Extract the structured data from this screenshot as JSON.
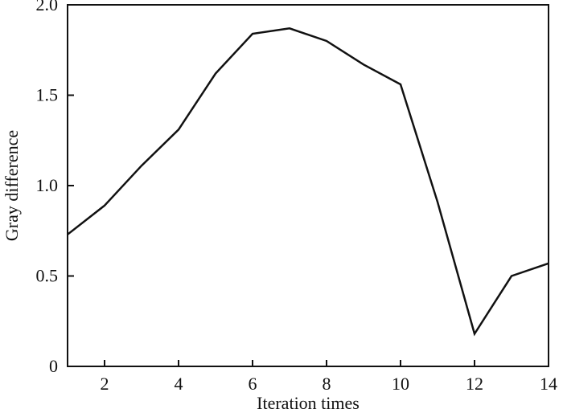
{
  "chart_data": {
    "type": "line",
    "title": "",
    "xlabel": "Iteration times",
    "ylabel": "Gray difference",
    "xlim": [
      1,
      14
    ],
    "ylim": [
      0,
      2.0
    ],
    "x_ticks": [
      2,
      4,
      6,
      8,
      10,
      12,
      14
    ],
    "x_tick_labels": [
      "2",
      "4",
      "6",
      "8",
      "10",
      "12",
      "14"
    ],
    "y_ticks": [
      0,
      0.5,
      1.0,
      1.5,
      2.0
    ],
    "y_tick_labels": [
      "0",
      "0.5",
      "1.0",
      "1.5",
      "2.0"
    ],
    "grid": false,
    "legend": "none",
    "series": [
      {
        "x": [
          1,
          2,
          3,
          4,
          5,
          6,
          7,
          8,
          9,
          10,
          11,
          12,
          13,
          14
        ],
        "values": [
          0.73,
          0.89,
          1.11,
          1.31,
          1.62,
          1.84,
          1.87,
          1.8,
          1.67,
          1.56,
          0.91,
          0.18,
          0.5,
          0.57
        ],
        "color": "#111111"
      }
    ]
  }
}
